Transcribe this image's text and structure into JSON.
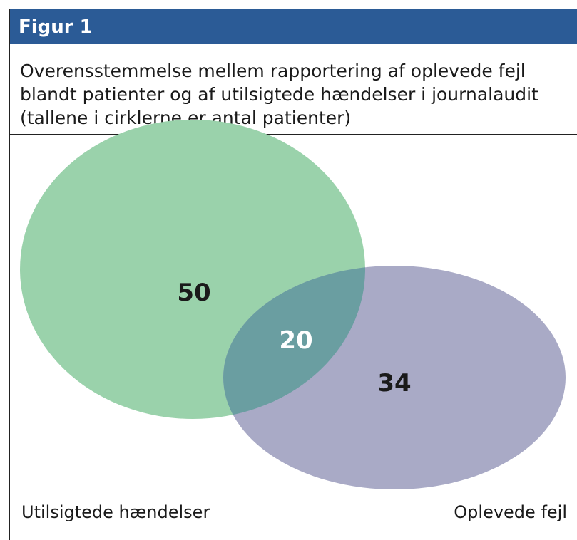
{
  "header": {
    "title": "Figur 1"
  },
  "caption": [
    "Overensstemmelse mellem rapportering af oplevede fejl",
    "blandt patienter og af utilsigtede hændelser i journalaudit",
    "(tallene i cirklerne er antal patienter)"
  ],
  "sets": [
    {
      "label": "Utilsigtede hændelser",
      "count": 50
    },
    {
      "label": "Oplevede fejl",
      "count": 34
    }
  ],
  "intersection": 20
}
